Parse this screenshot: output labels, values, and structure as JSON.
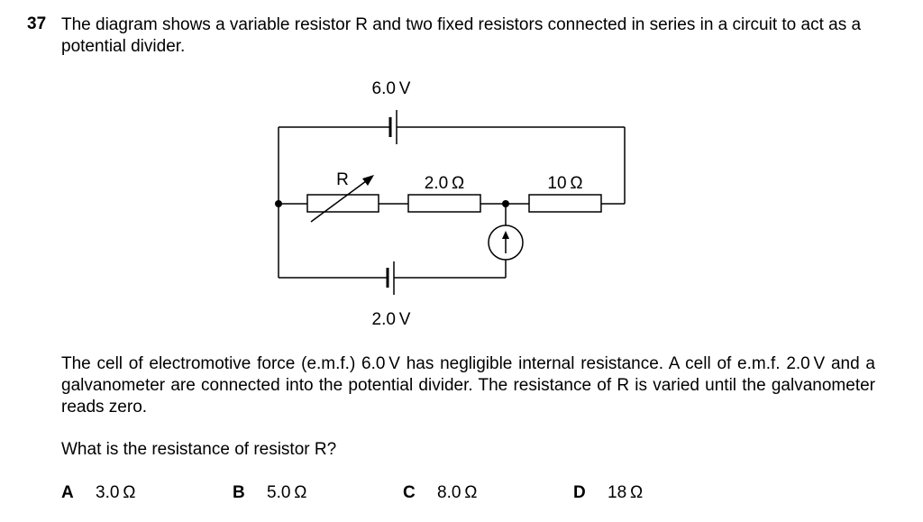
{
  "question": {
    "number": "37",
    "stem": "The diagram shows a variable resistor R and two fixed resistors connected in series in a circuit to act as a potential divider.",
    "paragraph": "The cell of electromotive force (e.m.f.) 6.0 V has negligible internal resistance. A cell of e.m.f. 2.0 V and a galvanometer are connected into the potential divider. The resistance of R is varied until the galvanometer reads zero.",
    "prompt": "What is the resistance of resistor R?"
  },
  "circuit": {
    "top_cell_label": "6.0 V",
    "bottom_cell_label": "2.0 V",
    "variable_resistor_label": "R",
    "resistor_1_label": "2.0 Ω",
    "resistor_2_label": "10 Ω"
  },
  "options": [
    {
      "letter": "A",
      "value": "3.0 Ω"
    },
    {
      "letter": "B",
      "value": "5.0 Ω"
    },
    {
      "letter": "C",
      "value": "8.0 Ω"
    },
    {
      "letter": "D",
      "value": "18 Ω"
    }
  ]
}
